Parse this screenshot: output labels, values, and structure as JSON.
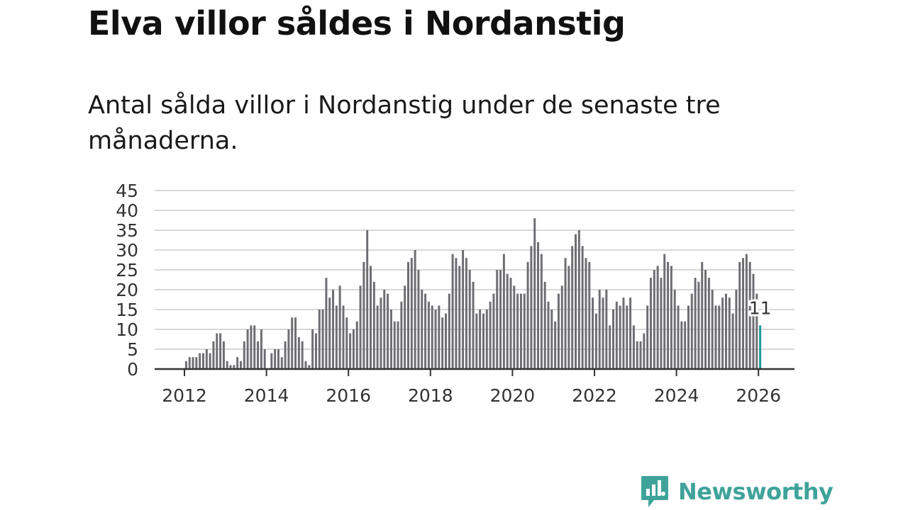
{
  "title": "Elva villor såldes i Nordanstig",
  "subtitle": "Antal sålda villor i Nordanstig under de senaste tre månaderna.",
  "brand": {
    "name": "Newsworthy",
    "color": "#3fa39a",
    "icon": "newsworthy-logo-icon"
  },
  "colors": {
    "bar": "#6e6d72",
    "highlight": "#1b9c97",
    "grid": "#d8d8d8",
    "axis": "#333333"
  },
  "chart_data": {
    "type": "bar",
    "title": "Elva villor såldes i Nordanstig",
    "xlabel": "",
    "ylabel": "",
    "ylim": [
      0,
      45
    ],
    "yticks": [
      0,
      5,
      10,
      15,
      20,
      25,
      30,
      35,
      40,
      45
    ],
    "xticks": [
      "2012",
      "2014",
      "2016",
      "2018",
      "2020",
      "2022",
      "2024",
      "2026"
    ],
    "grid": true,
    "start": "2012-01",
    "frequency": "monthly",
    "highlight_label": "11",
    "values": [
      2,
      3,
      3,
      3,
      4,
      4,
      5,
      4,
      7,
      9,
      9,
      7,
      2,
      1,
      1,
      3,
      2,
      7,
      10,
      11,
      11,
      7,
      10,
      5,
      0,
      4,
      5,
      5,
      3,
      7,
      10,
      13,
      13,
      8,
      7,
      2,
      1,
      10,
      9,
      15,
      15,
      23,
      18,
      20,
      16,
      21,
      16,
      13,
      9,
      10,
      12,
      21,
      27,
      35,
      26,
      22,
      16,
      18,
      20,
      19,
      15,
      12,
      12,
      17,
      21,
      27,
      28,
      30,
      25,
      20,
      19,
      17,
      16,
      15,
      16,
      13,
      14,
      19,
      29,
      28,
      26,
      30,
      28,
      25,
      22,
      14,
      15,
      14,
      15,
      17,
      19,
      25,
      25,
      29,
      24,
      23,
      21,
      19,
      19,
      19,
      27,
      31,
      38,
      32,
      29,
      22,
      17,
      15,
      12,
      19,
      21,
      28,
      26,
      31,
      34,
      35,
      31,
      28,
      27,
      18,
      14,
      20,
      18,
      20,
      11,
      15,
      17,
      16,
      18,
      16,
      18,
      11,
      7,
      7,
      9,
      16,
      23,
      25,
      26,
      23,
      29,
      27,
      26,
      20,
      16,
      12,
      12,
      16,
      19,
      23,
      22,
      27,
      25,
      23,
      20,
      16,
      16,
      18,
      19,
      18,
      14,
      20,
      27,
      28,
      29,
      27,
      24,
      19,
      11
    ]
  }
}
